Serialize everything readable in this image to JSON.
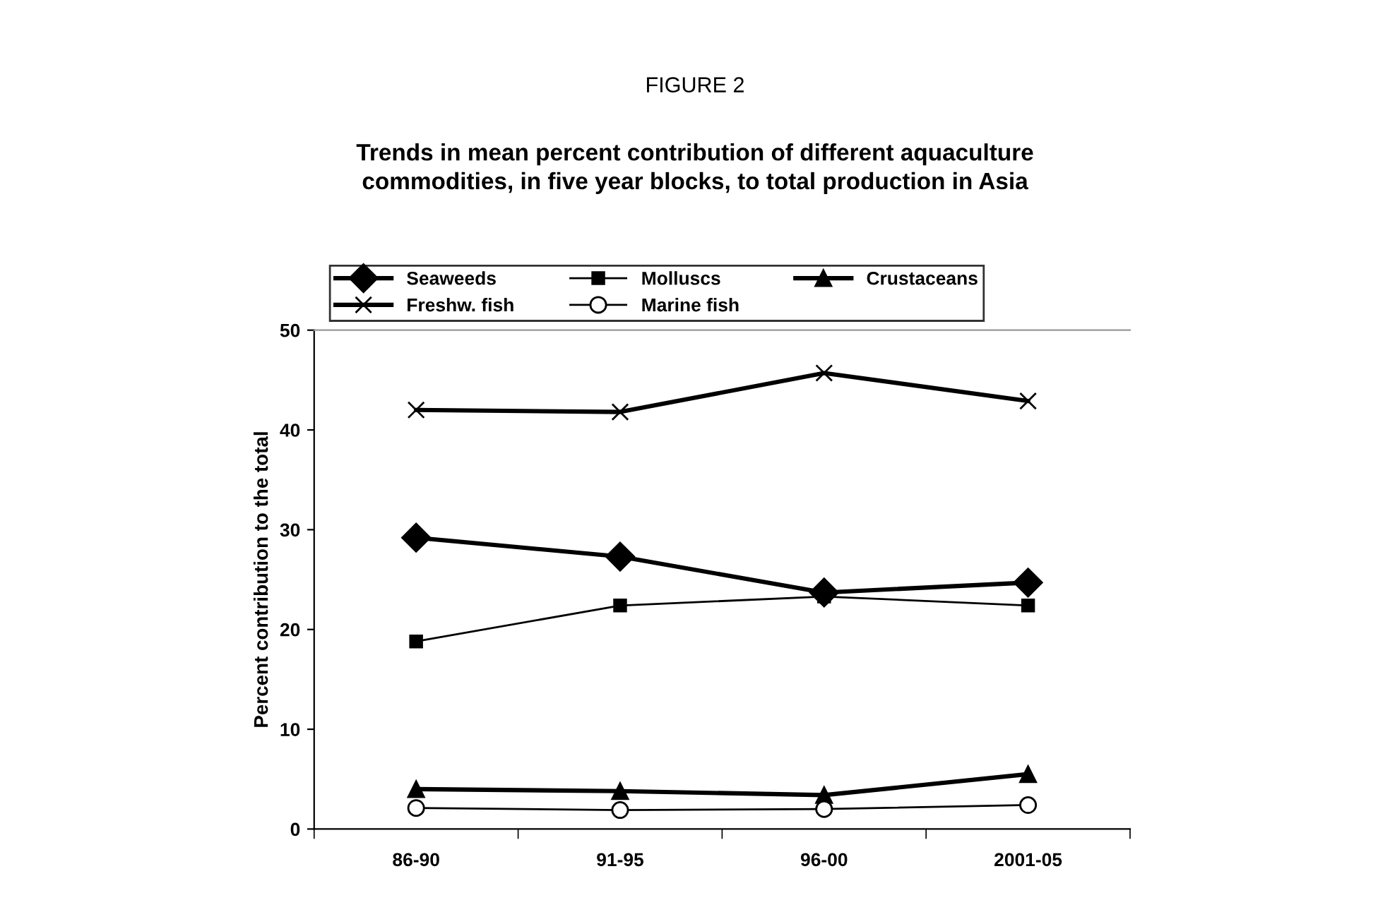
{
  "chart_data": {
    "type": "line",
    "title": "FIGURE 2",
    "subtitle": "Trends in mean percent contribution of different aquaculture\ncommodities, in five year blocks, to total production in Asia",
    "ylabel": "Percent contribution to the total",
    "categories": [
      "86-90",
      "91-95",
      "96-00",
      "2001-05"
    ],
    "series": [
      {
        "name": "Seaweeds",
        "color": "#000000",
        "marker": "diamond",
        "values": [
          29.2,
          27.3,
          23.7,
          24.7
        ]
      },
      {
        "name": "Molluscs",
        "color": "#000000",
        "marker": "square",
        "values": [
          18.8,
          22.4,
          23.3,
          22.4
        ]
      },
      {
        "name": "Crustaceans",
        "color": "#000000",
        "marker": "triangle",
        "values": [
          4.0,
          3.8,
          3.4,
          5.5
        ]
      },
      {
        "name": "Freshw. fish",
        "color": "#000000",
        "marker": "cross",
        "values": [
          42.0,
          41.8,
          45.7,
          42.9
        ]
      },
      {
        "name": "Marine fish",
        "color": "#000000",
        "marker": "circle",
        "values": [
          2.1,
          1.9,
          2.0,
          2.4
        ]
      }
    ],
    "ylim": [
      0,
      50
    ],
    "yticks": [
      0,
      10,
      20,
      30,
      40,
      50
    ],
    "grid": false,
    "legend": "top",
    "line_style": "solid"
  }
}
